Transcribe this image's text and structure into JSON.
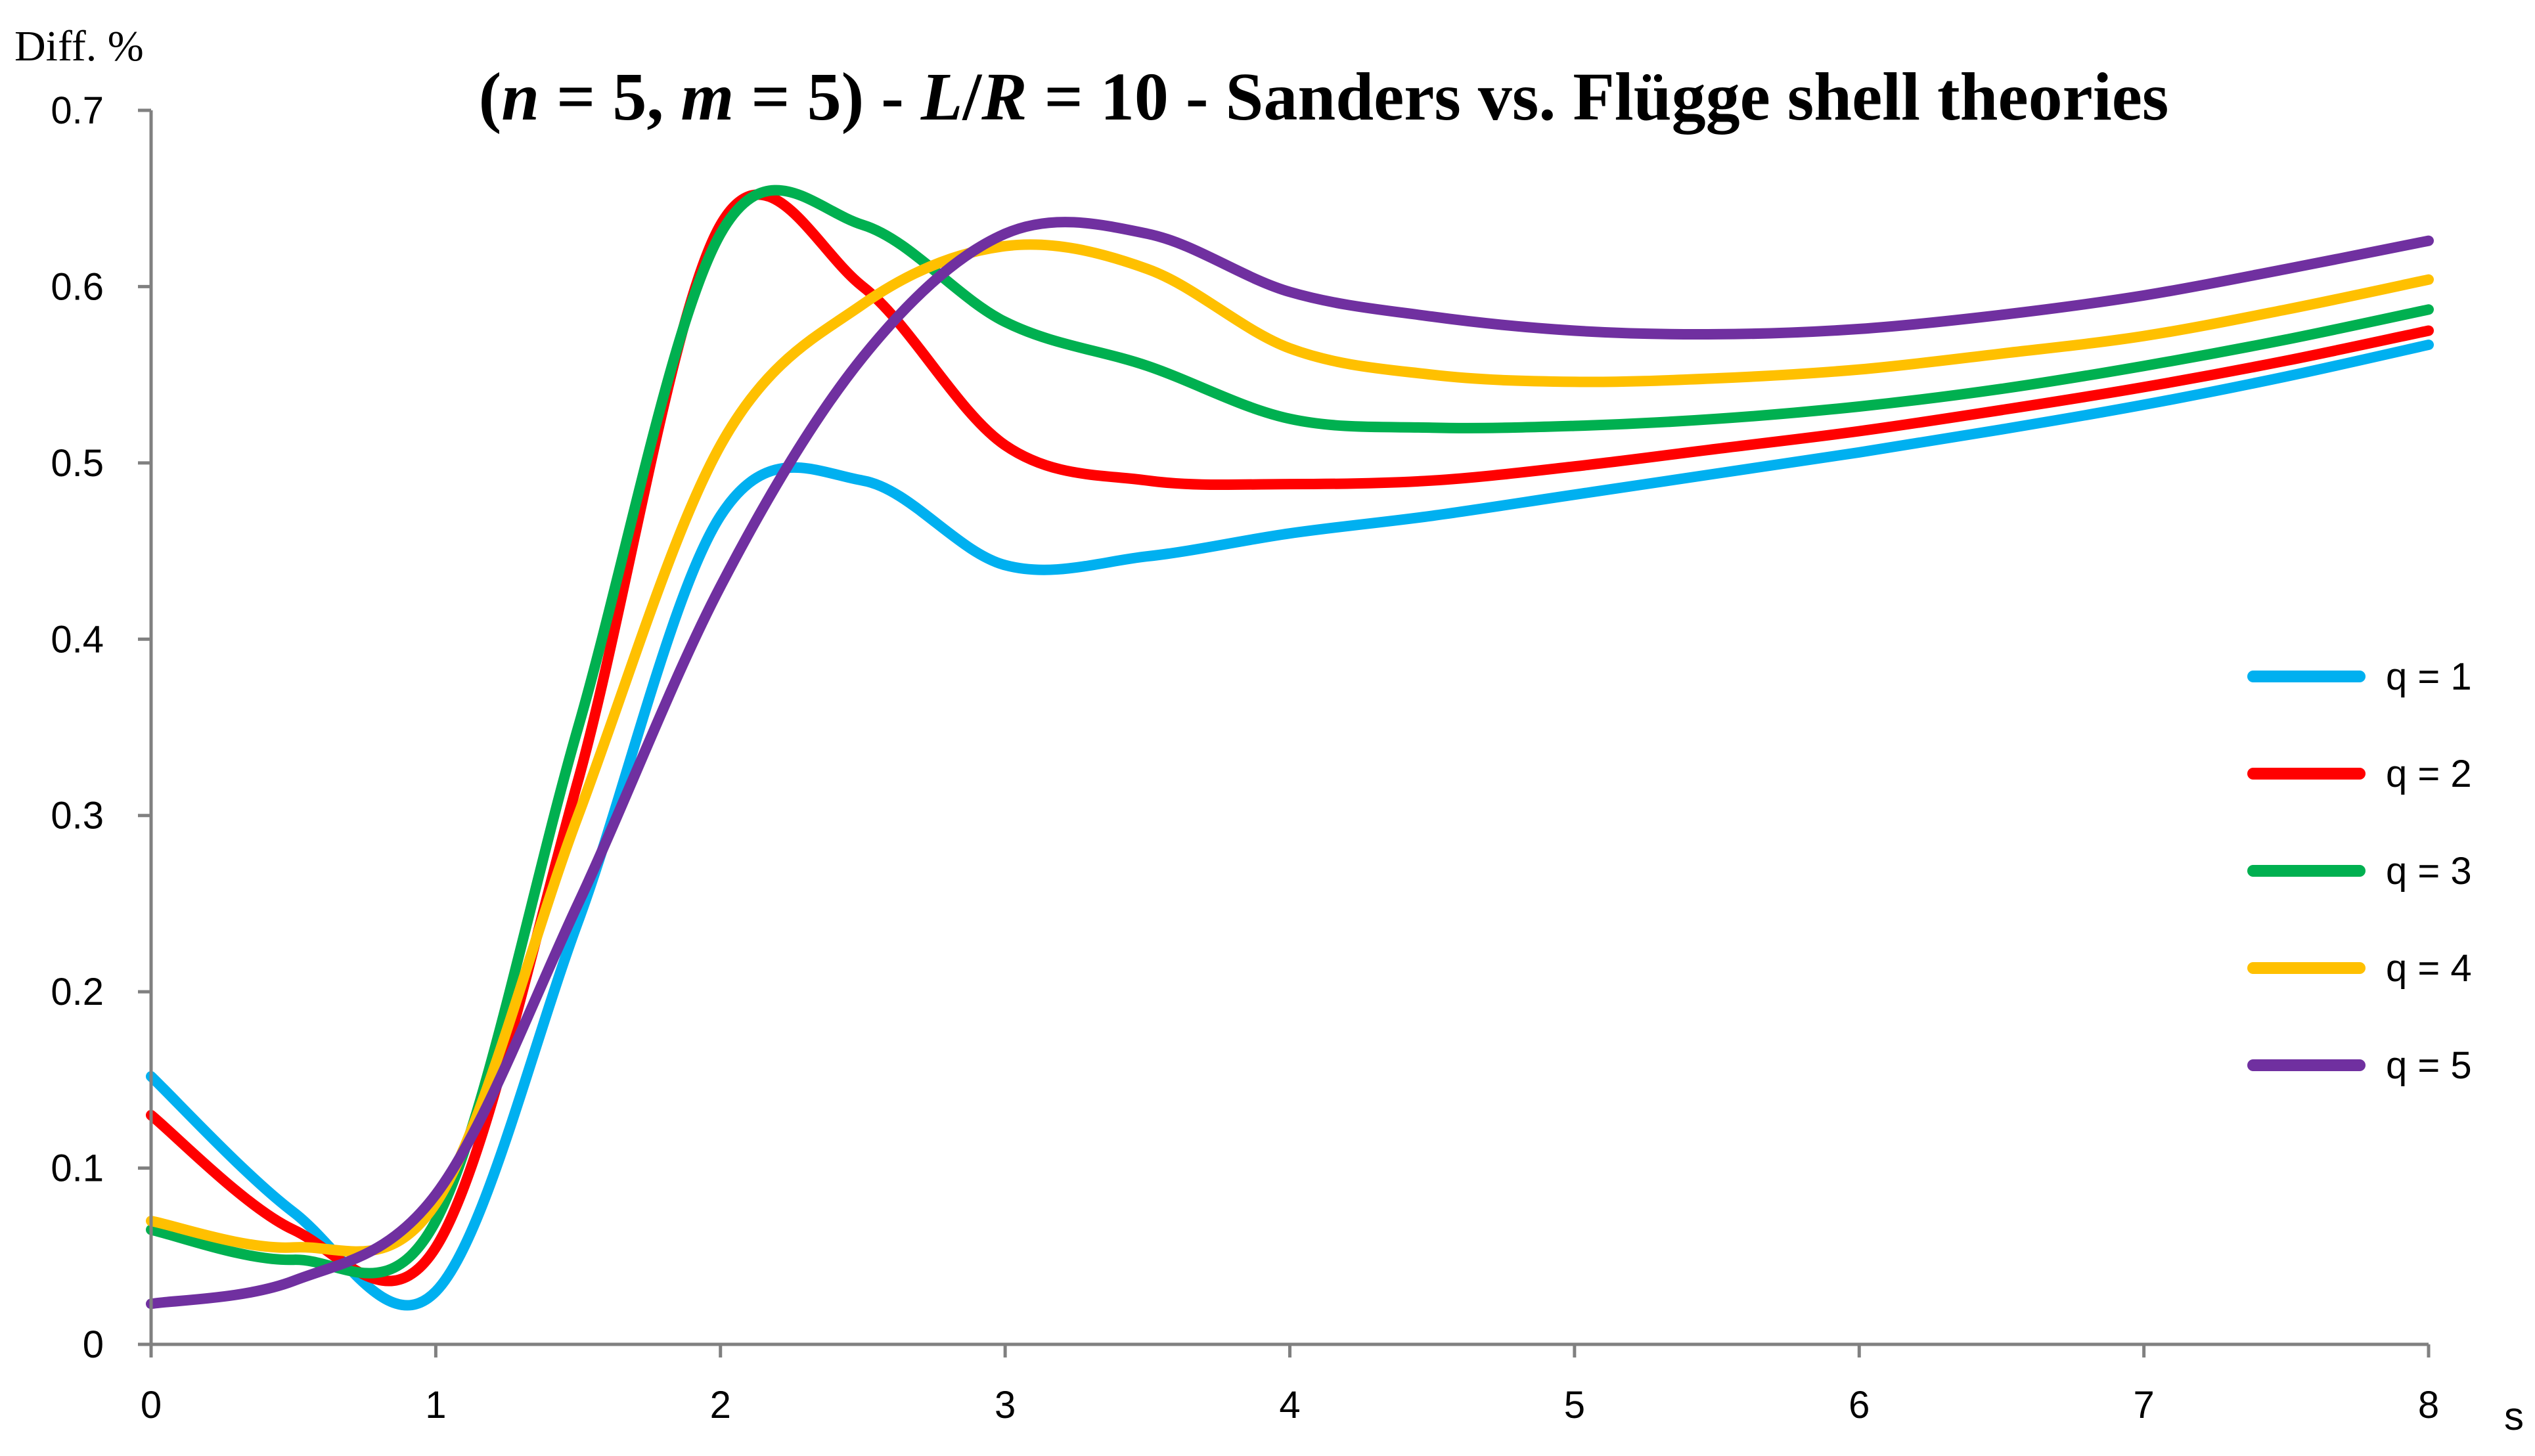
{
  "chart_data": {
    "type": "line",
    "title": "(n = 5, m = 5) - L/R = 10 - Sanders vs. Flügge shell theories",
    "title_parts": [
      {
        "text": "(",
        "italic": false
      },
      {
        "text": "n",
        "italic": true
      },
      {
        "text": " = 5, ",
        "italic": false
      },
      {
        "text": "m",
        "italic": true
      },
      {
        "text": " = 5) - ",
        "italic": false
      },
      {
        "text": "L",
        "italic": true
      },
      {
        "text": "/",
        "italic": false
      },
      {
        "text": "R",
        "italic": true
      },
      {
        "text": " = 10 - Sanders vs. Flügge shell theories",
        "italic": false
      }
    ],
    "xlabel": "s",
    "ylabel": "Diff. %",
    "xlim": [
      0,
      8
    ],
    "ylim": [
      0,
      0.7
    ],
    "xticks": [
      0,
      1,
      2,
      3,
      4,
      5,
      6,
      7,
      8
    ],
    "xtick_labels": [
      "0",
      "1",
      "2",
      "3",
      "4",
      "5",
      "6",
      "7",
      "8"
    ],
    "yticks": [
      0,
      0.1,
      0.2,
      0.3,
      0.4,
      0.5,
      0.6,
      0.7
    ],
    "ytick_labels": [
      "0",
      "0.1",
      "0.2",
      "0.3",
      "0.4",
      "0.5",
      "0.6",
      "0.7"
    ],
    "grid": false,
    "legend_position": "right",
    "x": [
      0,
      0.5,
      1,
      1.5,
      2,
      2.5,
      3,
      3.5,
      4,
      4.5,
      5,
      5.5,
      6,
      6.5,
      7,
      7.5,
      8
    ],
    "series": [
      {
        "name": "q = 1",
        "color": "#00B0F0",
        "values": [
          0.152,
          0.075,
          0.03,
          0.24,
          0.47,
          0.49,
          0.442,
          0.447,
          0.46,
          0.47,
          0.482,
          0.494,
          0.506,
          0.519,
          0.533,
          0.549,
          0.567
        ]
      },
      {
        "name": "q = 2",
        "color": "#FF0000",
        "values": [
          0.13,
          0.065,
          0.055,
          0.32,
          0.635,
          0.6,
          0.51,
          0.49,
          0.488,
          0.49,
          0.498,
          0.508,
          0.518,
          0.53,
          0.543,
          0.558,
          0.575
        ]
      },
      {
        "name": "q = 3",
        "color": "#00B050",
        "values": [
          0.065,
          0.048,
          0.07,
          0.35,
          0.63,
          0.635,
          0.58,
          0.555,
          0.525,
          0.52,
          0.521,
          0.525,
          0.532,
          0.542,
          0.555,
          0.57,
          0.587
        ]
      },
      {
        "name": "q = 4",
        "color": "#FFC000",
        "values": [
          0.07,
          0.055,
          0.08,
          0.3,
          0.51,
          0.59,
          0.623,
          0.61,
          0.565,
          0.55,
          0.546,
          0.548,
          0.553,
          0.562,
          0.572,
          0.587,
          0.604
        ]
      },
      {
        "name": "q = 5",
        "color": "#7030A0",
        "values": [
          0.023,
          0.036,
          0.085,
          0.25,
          0.43,
          0.56,
          0.63,
          0.63,
          0.597,
          0.583,
          0.575,
          0.573,
          0.576,
          0.584,
          0.595,
          0.61,
          0.626
        ]
      }
    ]
  }
}
